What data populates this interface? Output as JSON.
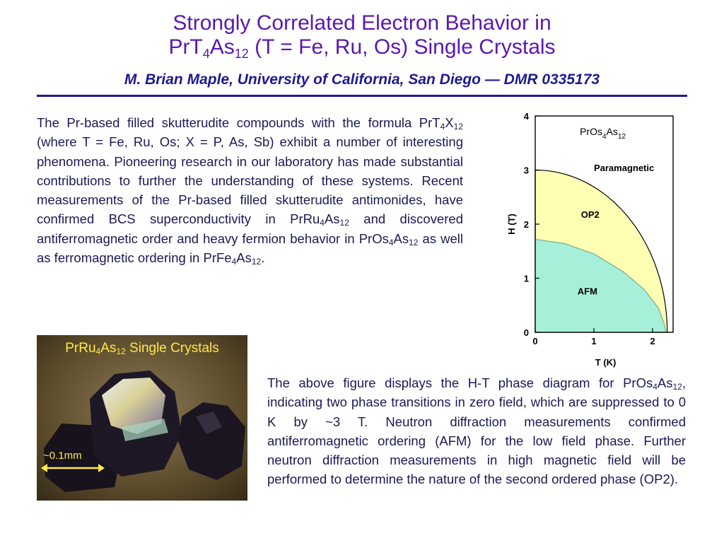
{
  "title": {
    "line1": "Strongly Correlated Electron Behavior in",
    "line2_a": "PrT",
    "line2_sub1": "4",
    "line2_b": "As",
    "line2_sub2": "12",
    "line2_c": " (T = Fe, Ru, Os) Single Crystals"
  },
  "author": "M. Brian Maple, University of California, San Diego — DMR 0335173",
  "paragraph1": {
    "t1": "The Pr-based filled skutterudite compounds with the formula PrT",
    "s1": "4",
    "t2": "X",
    "s2": "12",
    "t3": " (where T = Fe, Ru, Os; X = P, As, Sb) exhibit a number of interesting phenomena. Pioneering research in our laboratory has made substantial contributions to further the understanding of these systems. Recent measurements of the Pr-based  filled skutterudite antimonides, have confirmed BCS superconductivity in PrRu",
    "s3": "4",
    "t4": "As",
    "s4": "12",
    "t5": " and discovered antiferromagnetic order and heavy fermion behavior in PrOs",
    "s5": "4",
    "t6": "As",
    "s6": "12",
    "t7": " as well as ferromagnetic ordering in PrFe",
    "s7": "4",
    "t8": "As",
    "s8": "12",
    "t9": "."
  },
  "paragraph2": {
    "t1": "The above figure displays the H-T phase diagram for PrOs",
    "s1": "4",
    "t2": "As",
    "s2": "12",
    "t3": ", indicating two phase transitions in zero field, which are suppressed to 0 K by ~3 T. Neutron diffraction measurements confirmed antiferromagnetic ordering (AFM) for the low field phase.  Further neutron diffraction measurements in high magnetic field will be performed to determine the nature of the second ordered phase (OP2)."
  },
  "photo": {
    "caption_a": "PrRu",
    "caption_sub1": "4",
    "caption_b": "As",
    "caption_sub2": "12",
    "caption_c": " Single Crystals",
    "scale_label": "~0.1mm",
    "scale_color": "#ffe84a"
  },
  "chart_data": {
    "type": "phase-diagram",
    "xlabel": "T (K)",
    "ylabel": "H (T)",
    "xlim": [
      0,
      2.35
    ],
    "ylim": [
      0,
      4
    ],
    "xticks": [
      "0",
      "1",
      "2"
    ],
    "yticks": [
      "0",
      "1",
      "2",
      "3",
      "4"
    ],
    "compound": {
      "a": "PrOs",
      "sub1": "4",
      "b": "As",
      "sub2": "12"
    },
    "regions": [
      {
        "name": "Paramagnetic",
        "color": "#ffffff"
      },
      {
        "name": "OP2",
        "color": "#ffffb3"
      },
      {
        "name": "AFM",
        "color": "#a6f0d9"
      }
    ],
    "op2_boundary": {
      "T0": 2.25,
      "H0": 3.0
    },
    "afm_boundary": [
      [
        0,
        1.72
      ],
      [
        0.5,
        1.64
      ],
      [
        1.0,
        1.45
      ],
      [
        1.5,
        1.12
      ],
      [
        1.85,
        0.8
      ],
      [
        2.1,
        0.45
      ],
      [
        2.2,
        0.15
      ],
      [
        2.23,
        0
      ]
    ]
  }
}
